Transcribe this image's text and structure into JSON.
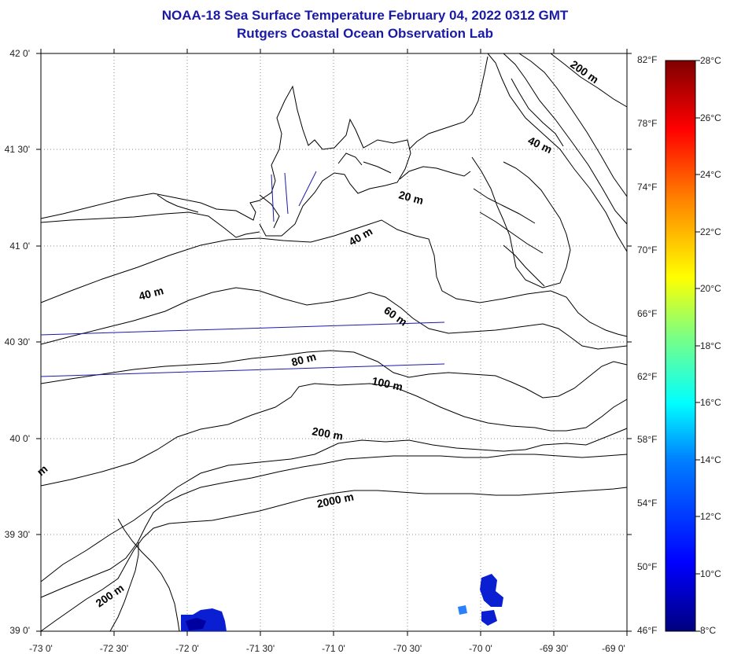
{
  "header": {
    "title": "NOAA-18 Sea Surface Temperature February 04, 2022 0312 GMT",
    "subtitle": "Rutgers Coastal Ocean Observation Lab"
  },
  "axes": {
    "lat_ticks": [
      "42 0'",
      "41 30'",
      "41 0'",
      "40 30'",
      "40 0'",
      "39 30'",
      "39 0'"
    ],
    "lon_ticks": [
      "-73 0'",
      "-72 30'",
      "-72 0'",
      "-71 30'",
      "-71 0'",
      "-70 30'",
      "-70 0'",
      "-69 30'",
      "-69 0'"
    ],
    "lat_range": [
      39.0,
      42.0
    ],
    "lon_range": [
      -73.0,
      -69.0
    ],
    "grid": "dotted"
  },
  "colorbar": {
    "fahrenheit_labels": [
      "82°F",
      "78°F",
      "74°F",
      "70°F",
      "66°F",
      "62°F",
      "58°F",
      "54°F",
      "50°F",
      "46°F"
    ],
    "celsius_labels": [
      "28°C",
      "26°C",
      "24°C",
      "22°C",
      "20°C",
      "18°C",
      "16°C",
      "14°C",
      "12°C",
      "10°C",
      "8°C"
    ],
    "range_c": [
      8,
      28
    ],
    "colors": [
      "#00007f",
      "#0000ff",
      "#007fff",
      "#00ffff",
      "#7fff7f",
      "#ffff00",
      "#ff7f00",
      "#ff0000",
      "#7f0000"
    ]
  },
  "contour_labels": {
    "c200_top": "200 m",
    "c40_ne": "40 m",
    "c20": "20 m",
    "c40_mid": "40 m",
    "c40_west": "40 m",
    "c60": "60 m",
    "c80": "80 m",
    "c100": "100 m",
    "c200_mid": "200 m",
    "c2000": "2000 m",
    "c200_sw": "200 m",
    "c_edge": "m"
  },
  "colors": {
    "title": "#1a1aa6",
    "coast": "#000000",
    "transect": "#1a1aa6",
    "sst_patch": "#0a1ed2"
  }
}
